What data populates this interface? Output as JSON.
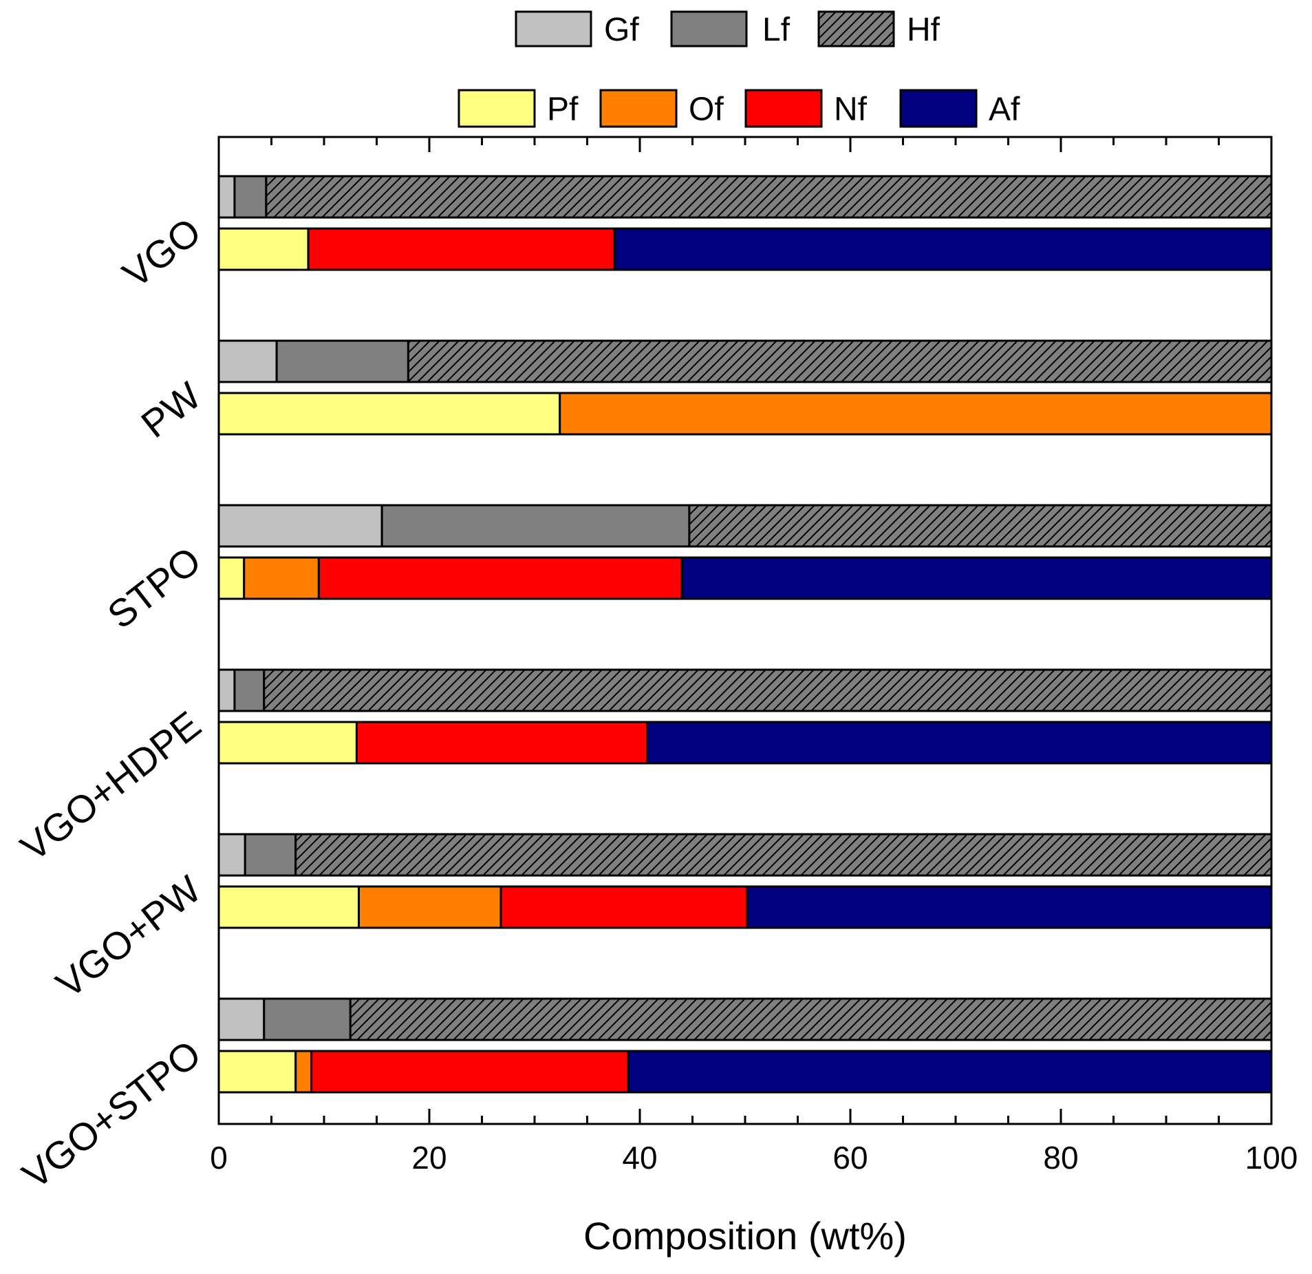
{
  "chart_data": {
    "type": "bar",
    "orientation": "horizontal",
    "stacked": true,
    "xlabel": "Composition (wt%)",
    "ylabel": "",
    "xlim": [
      0,
      100
    ],
    "xticks": [
      0,
      20,
      40,
      60,
      80,
      100
    ],
    "categories": [
      "VGO",
      "PW",
      "STPO",
      "VGO+HDPE",
      "VGO+PW",
      "VGO+STPO"
    ],
    "groups": [
      {
        "name": "boiling-fractions",
        "legend_position": "top",
        "series": [
          {
            "name": "Gf",
            "color": "#c0c0c0",
            "pattern": "none",
            "values": [
              1.5,
              5.5,
              15.5,
              1.5,
              2.5,
              4.3
            ]
          },
          {
            "name": "Lf",
            "color": "#808080",
            "pattern": "none",
            "values": [
              3.0,
              12.5,
              29.2,
              2.8,
              4.8,
              8.2
            ]
          },
          {
            "name": "Hf",
            "color": "#808080",
            "pattern": "hatch",
            "values": [
              95.5,
              82.0,
              55.3,
              95.7,
              92.7,
              87.5
            ]
          }
        ]
      },
      {
        "name": "hydrocarbon-families",
        "legend_position": "top",
        "series": [
          {
            "name": "Pf",
            "color": "#ffff80",
            "pattern": "none",
            "values": [
              8.5,
              32.4,
              2.4,
              13.1,
              13.3,
              7.3
            ]
          },
          {
            "name": "Of",
            "color": "#ff8000",
            "pattern": "none",
            "values": [
              0.0,
              67.6,
              7.1,
              0.0,
              13.5,
              1.5
            ]
          },
          {
            "name": "Nf",
            "color": "#ff0000",
            "pattern": "none",
            "values": [
              29.1,
              0.0,
              34.5,
              27.6,
              23.4,
              30.1
            ]
          },
          {
            "name": "Af",
            "color": "#000080",
            "pattern": "none",
            "values": [
              62.4,
              0.0,
              56.0,
              59.3,
              49.8,
              61.1
            ]
          }
        ]
      }
    ]
  }
}
